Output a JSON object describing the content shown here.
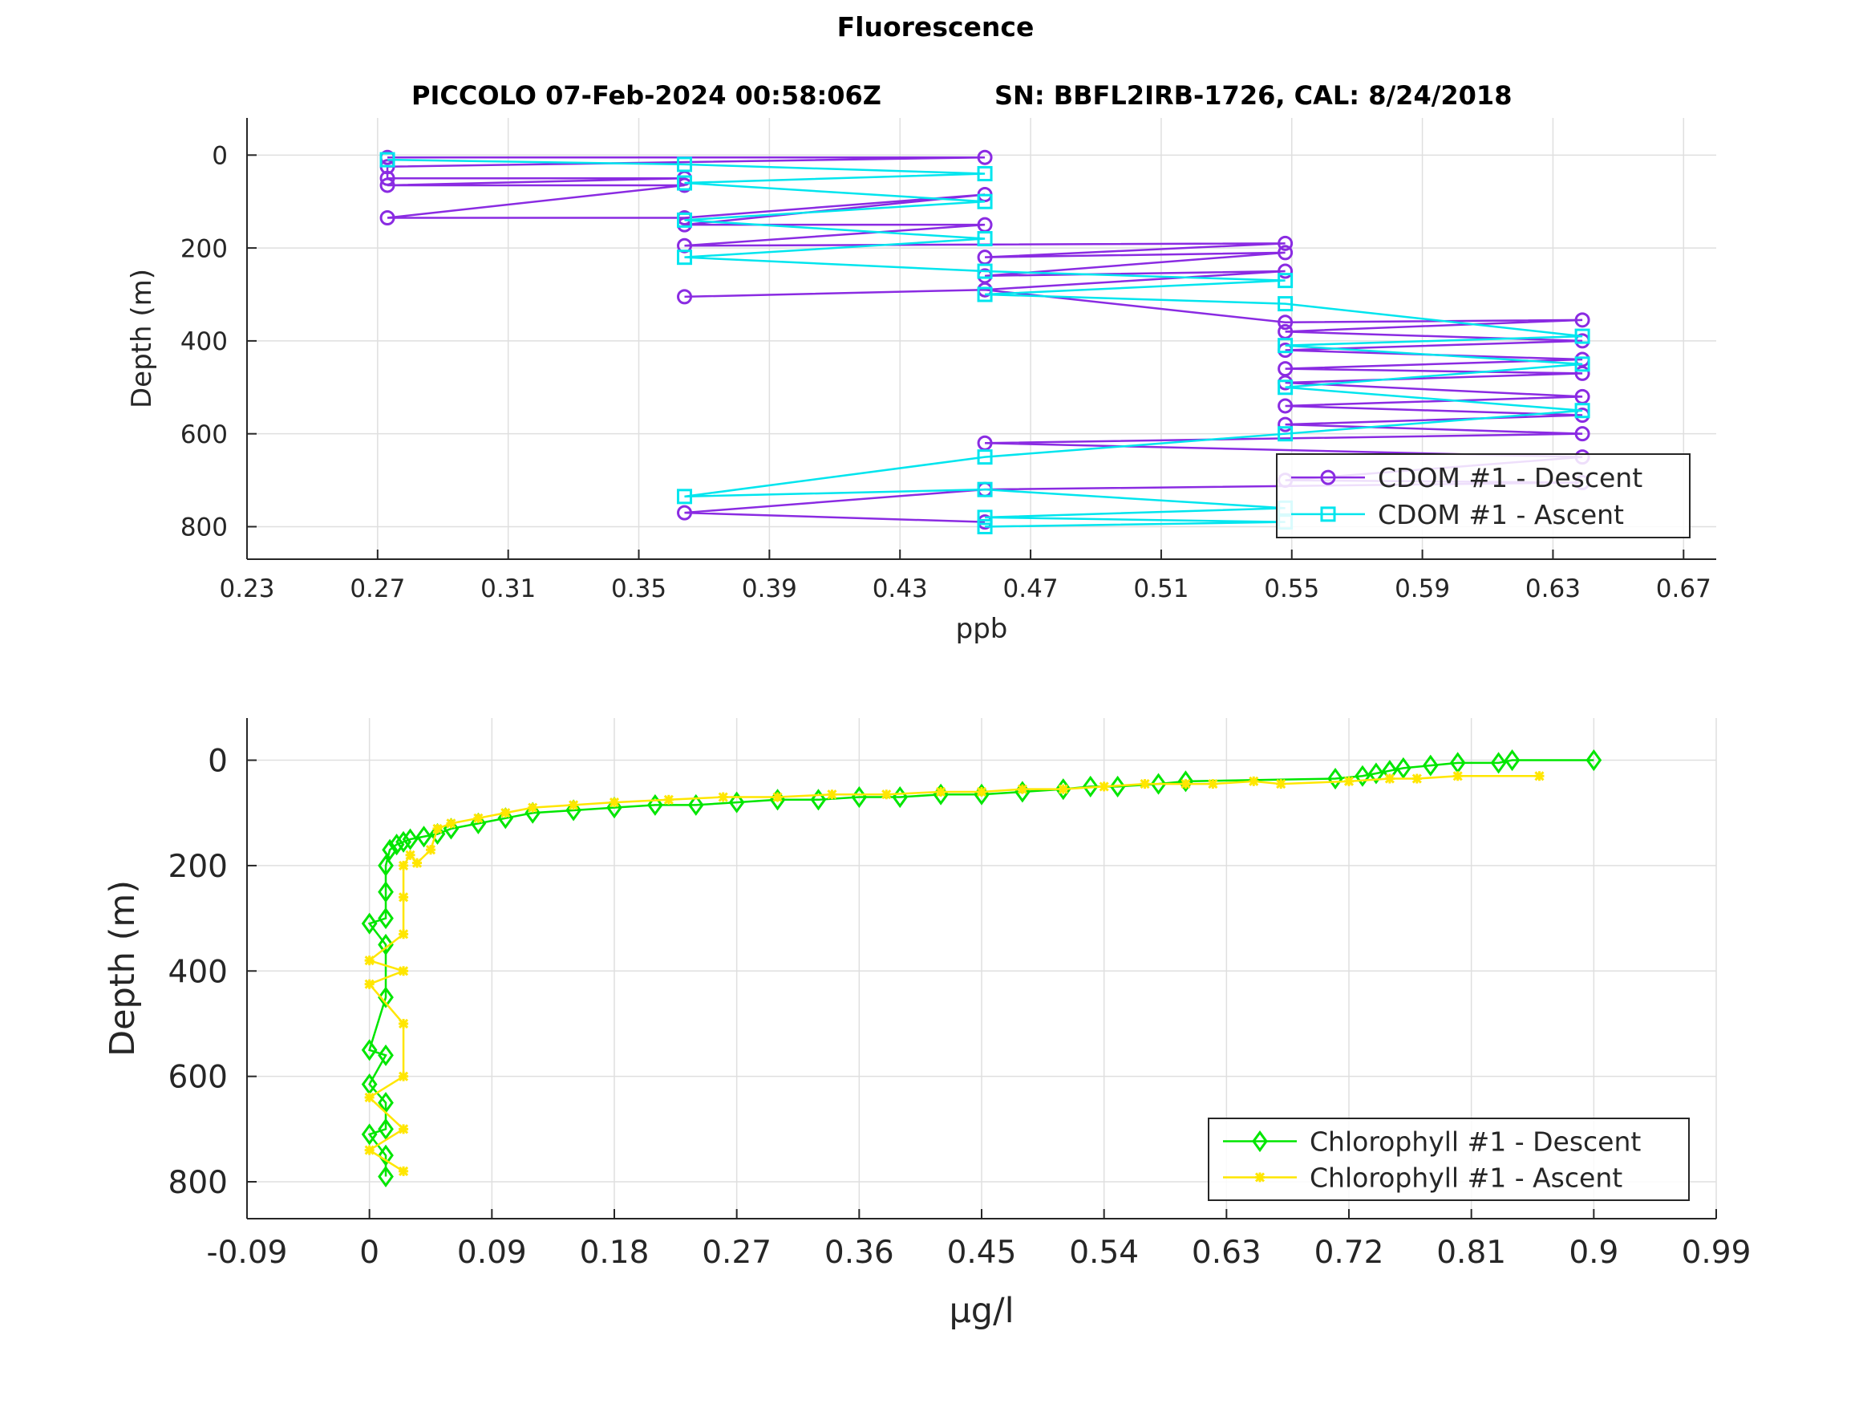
{
  "figure": {
    "title": "Fluorescence",
    "subtitle_left": "PICCOLO 07-Feb-2024 00:58:06Z",
    "subtitle_right": "SN: BBFL2IRB-1726, CAL: 8/24/2018"
  },
  "chart_data": [
    {
      "type": "line",
      "xlabel": "ppb",
      "ylabel": "Depth (m)",
      "xlim": [
        0.23,
        0.68
      ],
      "ylim": [
        -80,
        870
      ],
      "y_reversed": true,
      "grid": true,
      "xticks": [
        "0.23",
        "0.27",
        "0.31",
        "0.35",
        "0.39",
        "0.43",
        "0.47",
        "0.51",
        "0.55",
        "0.59",
        "0.63",
        "0.67"
      ],
      "yticks": [
        "0",
        "200",
        "400",
        "600",
        "800"
      ],
      "legend_position": "bottom-right",
      "series": [
        {
          "name": "CDOM #1 - Descent",
          "color": "#8a2be2",
          "marker": "circle",
          "x": [
            0.273,
            0.456,
            0.273,
            0.273,
            0.364,
            0.273,
            0.364,
            0.273,
            0.364,
            0.456,
            0.364,
            0.456,
            0.364,
            0.548,
            0.456,
            0.548,
            0.456,
            0.548,
            0.456,
            0.364,
            0.456,
            0.548,
            0.639,
            0.548,
            0.639,
            0.548,
            0.639,
            0.548,
            0.639,
            0.548,
            0.639,
            0.548,
            0.639,
            0.548,
            0.639,
            0.456,
            0.639,
            0.548,
            0.639,
            0.456,
            0.364,
            0.456
          ],
          "y": [
            5,
            5,
            25,
            50,
            50,
            65,
            65,
            135,
            135,
            85,
            150,
            150,
            195,
            190,
            220,
            210,
            260,
            250,
            290,
            305,
            290,
            360,
            355,
            380,
            400,
            420,
            440,
            460,
            470,
            490,
            520,
            540,
            560,
            580,
            600,
            620,
            650,
            700,
            705,
            720,
            770,
            790
          ]
        },
        {
          "name": "CDOM #1 - Ascent",
          "color": "#00e5ee",
          "marker": "square",
          "x": [
            0.273,
            0.364,
            0.456,
            0.364,
            0.456,
            0.364,
            0.456,
            0.364,
            0.456,
            0.548,
            0.456,
            0.548,
            0.639,
            0.548,
            0.639,
            0.548,
            0.639,
            0.548,
            0.456,
            0.364,
            0.456,
            0.548,
            0.456,
            0.548,
            0.456
          ],
          "y": [
            10,
            20,
            40,
            60,
            100,
            140,
            180,
            220,
            250,
            270,
            300,
            320,
            390,
            410,
            450,
            500,
            550,
            600,
            650,
            735,
            720,
            760,
            780,
            790,
            800
          ]
        }
      ]
    },
    {
      "type": "line",
      "xlabel": "μg/l",
      "ylabel": "Depth (m)",
      "xlim": [
        -0.09,
        0.99
      ],
      "ylim": [
        -80,
        870
      ],
      "y_reversed": true,
      "grid": true,
      "xticks": [
        "-0.09",
        "0",
        "0.09",
        "0.18",
        "0.27",
        "0.36",
        "0.45",
        "0.54",
        "0.63",
        "0.72",
        "0.81",
        "0.9",
        "0.99"
      ],
      "yticks": [
        "0",
        "200",
        "400",
        "600",
        "800"
      ],
      "legend_position": "bottom-right",
      "series": [
        {
          "name": "Chlorophyll #1 - Descent",
          "color": "#00e600",
          "marker": "diamond",
          "x": [
            0.9,
            0.84,
            0.83,
            0.8,
            0.78,
            0.76,
            0.75,
            0.74,
            0.73,
            0.71,
            0.6,
            0.58,
            0.55,
            0.53,
            0.51,
            0.48,
            0.45,
            0.42,
            0.39,
            0.36,
            0.33,
            0.3,
            0.27,
            0.24,
            0.21,
            0.18,
            0.15,
            0.12,
            0.1,
            0.08,
            0.06,
            0.05,
            0.04,
            0.03,
            0.025,
            0.02,
            0.015,
            0.012,
            0.012,
            0.012,
            0.0,
            0.012,
            0.012,
            0.0,
            0.012,
            0.0,
            0.012,
            0.012,
            0.0,
            0.012,
            0.012
          ],
          "y": [
            0,
            0,
            5,
            5,
            10,
            15,
            20,
            25,
            30,
            35,
            40,
            45,
            50,
            50,
            55,
            60,
            65,
            65,
            70,
            70,
            75,
            75,
            80,
            85,
            85,
            90,
            95,
            100,
            110,
            120,
            130,
            140,
            145,
            150,
            155,
            160,
            170,
            200,
            250,
            300,
            310,
            350,
            450,
            550,
            560,
            615,
            650,
            700,
            710,
            750,
            790
          ]
        },
        {
          "name": "Chlorophyll #1 - Ascent",
          "color": "#ffe600",
          "marker": "asterisk",
          "x": [
            0.86,
            0.8,
            0.77,
            0.75,
            0.72,
            0.67,
            0.65,
            0.62,
            0.6,
            0.57,
            0.54,
            0.51,
            0.48,
            0.45,
            0.42,
            0.38,
            0.34,
            0.3,
            0.26,
            0.22,
            0.18,
            0.15,
            0.12,
            0.1,
            0.08,
            0.06,
            0.05,
            0.045,
            0.035,
            0.03,
            0.025,
            0.025,
            0.025,
            0.0,
            0.025,
            0.0,
            0.025,
            0.025,
            0.0,
            0.025,
            0.0,
            0.025
          ],
          "y": [
            30,
            30,
            35,
            35,
            40,
            45,
            40,
            45,
            45,
            45,
            50,
            55,
            55,
            60,
            60,
            65,
            65,
            70,
            70,
            75,
            80,
            85,
            90,
            100,
            110,
            120,
            130,
            170,
            195,
            180,
            200,
            260,
            330,
            380,
            400,
            425,
            500,
            600,
            640,
            700,
            740,
            780
          ]
        }
      ]
    }
  ]
}
